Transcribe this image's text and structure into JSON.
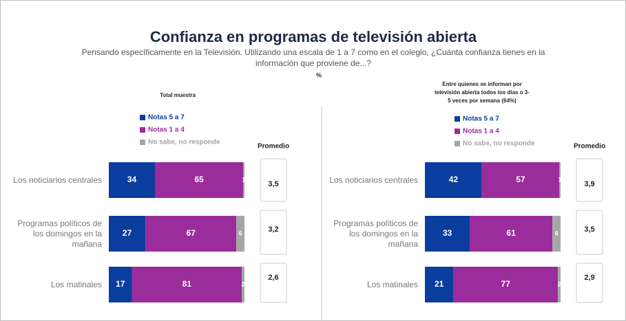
{
  "title": "Confianza en programas de televisión abierta",
  "subtitle": "Pensando específicamente en la Televisión. Utilizando una escala de 1 a 7 como en el colegio, ¿Cuánta confianza tienes en la información que proviene de...?",
  "unit": "%",
  "chart_data": [
    {
      "type": "bar",
      "orientation": "horizontal",
      "stacked": true,
      "title": "Total muestra",
      "categories": [
        "Los noticiarios centrales",
        "Programas políticos de los domingos en la mañana",
        "Los matinales"
      ],
      "series": [
        {
          "name": "Notas 5 a 7",
          "color": "#0b3d9e",
          "values": [
            34,
            27,
            17
          ]
        },
        {
          "name": "Notas 1 a 4",
          "color": "#9b2c9b",
          "values": [
            65,
            67,
            81
          ]
        },
        {
          "name": "No sabe, no responde",
          "color": "#a6a6a6",
          "values": [
            1,
            6,
            2
          ]
        }
      ],
      "xlim": [
        0,
        100
      ],
      "averages_title": "Promedio",
      "averages": [
        3.5,
        3.2,
        2.6
      ],
      "average_labels": [
        "3,5",
        "3,2",
        "2,6"
      ]
    },
    {
      "type": "bar",
      "orientation": "horizontal",
      "stacked": true,
      "title": "Entre quienes se informan por televisión abierta todos los días o 3-5 veces por semana (64%)",
      "categories": [
        "Los noticiarios centrales",
        "Programas políticos de los domingos en la mañana",
        "Los matinales"
      ],
      "series": [
        {
          "name": "Notas 5 a 7",
          "color": "#0b3d9e",
          "values": [
            42,
            33,
            21
          ]
        },
        {
          "name": "Notas 1 a 4",
          "color": "#9b2c9b",
          "values": [
            57,
            61,
            77
          ]
        },
        {
          "name": "No sabe, no responde",
          "color": "#a6a6a6",
          "values": [
            1,
            6,
            2
          ]
        }
      ],
      "xlim": [
        0,
        100
      ],
      "averages_title": "Promedio",
      "averages": [
        3.9,
        3.5,
        2.9
      ],
      "average_labels": [
        "3,9",
        "3,5",
        "2,9"
      ]
    }
  ]
}
